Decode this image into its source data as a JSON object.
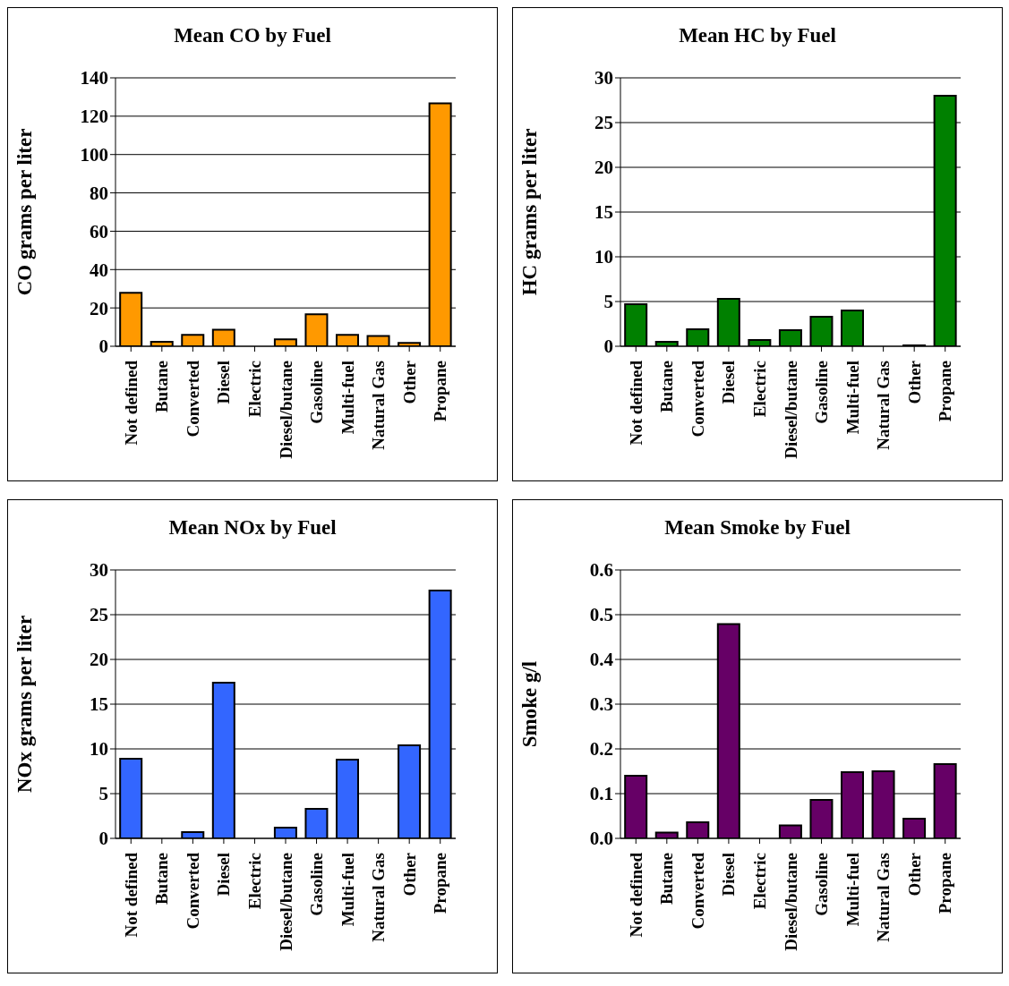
{
  "chart_data": [
    {
      "type": "bar",
      "title": "Mean CO by Fuel",
      "ylabel": "CO grams per liter",
      "categories": [
        "Not defined",
        "Butane",
        "Converted",
        "Diesel",
        "Electric",
        "Diesel/butane",
        "Gasoline",
        "Multi-fuel",
        "Natural Gas",
        "Other",
        "Propane"
      ],
      "values": [
        27.9,
        2.3,
        5.9,
        8.6,
        0,
        3.6,
        16.7,
        5.9,
        5.4,
        1.8,
        126.7
      ],
      "color": "#ff9900",
      "ylim": [
        0,
        140
      ],
      "yticks": [
        0,
        20,
        40,
        60,
        80,
        100,
        120,
        140
      ],
      "grid": "y"
    },
    {
      "type": "bar",
      "title": "Mean HC by Fuel",
      "ylabel": "HC grams per liter",
      "categories": [
        "Not defined",
        "Butane",
        "Converted",
        "Diesel",
        "Electric",
        "Diesel/butane",
        "Gasoline",
        "Multi-fuel",
        "Natural Gas",
        "Other",
        "Propane"
      ],
      "values": [
        4.7,
        0.5,
        1.9,
        5.3,
        0.7,
        1.8,
        3.3,
        4.0,
        0,
        0.1,
        28.0
      ],
      "color": "#008000",
      "ylim": [
        0,
        30
      ],
      "yticks": [
        0,
        5,
        10,
        15,
        20,
        25,
        30
      ],
      "grid": "y"
    },
    {
      "type": "bar",
      "title": "Mean NOx by Fuel",
      "ylabel": "NOx grams per liter",
      "categories": [
        "Not defined",
        "Butane",
        "Converted",
        "Diesel",
        "Electric",
        "Diesel/butane",
        "Gasoline",
        "Multi-fuel",
        "Natural Gas",
        "Other",
        "Propane"
      ],
      "values": [
        8.9,
        0,
        0.7,
        17.4,
        0,
        1.2,
        3.3,
        8.8,
        0,
        10.4,
        27.7
      ],
      "color": "#3366ff",
      "ylim": [
        0,
        30
      ],
      "yticks": [
        0,
        5,
        10,
        15,
        20,
        25,
        30
      ],
      "grid": "y"
    },
    {
      "type": "bar",
      "title": "Mean Smoke by Fuel",
      "ylabel": "Smoke g/l",
      "categories": [
        "Not defined",
        "Butane",
        "Converted",
        "Diesel",
        "Electric",
        "Diesel/butane",
        "Gasoline",
        "Multi-fuel",
        "Natural Gas",
        "Other",
        "Propane"
      ],
      "values": [
        0.14,
        0.013,
        0.036,
        0.479,
        0,
        0.029,
        0.086,
        0.148,
        0.15,
        0.044,
        0.166
      ],
      "color": "#660066",
      "ylim": [
        0,
        0.6
      ],
      "yticks": [
        {
          "value": 0,
          "label": "0.0"
        },
        0.1,
        0.2,
        0.3,
        0.4,
        0.5,
        0.6
      ],
      "grid": "y"
    }
  ]
}
